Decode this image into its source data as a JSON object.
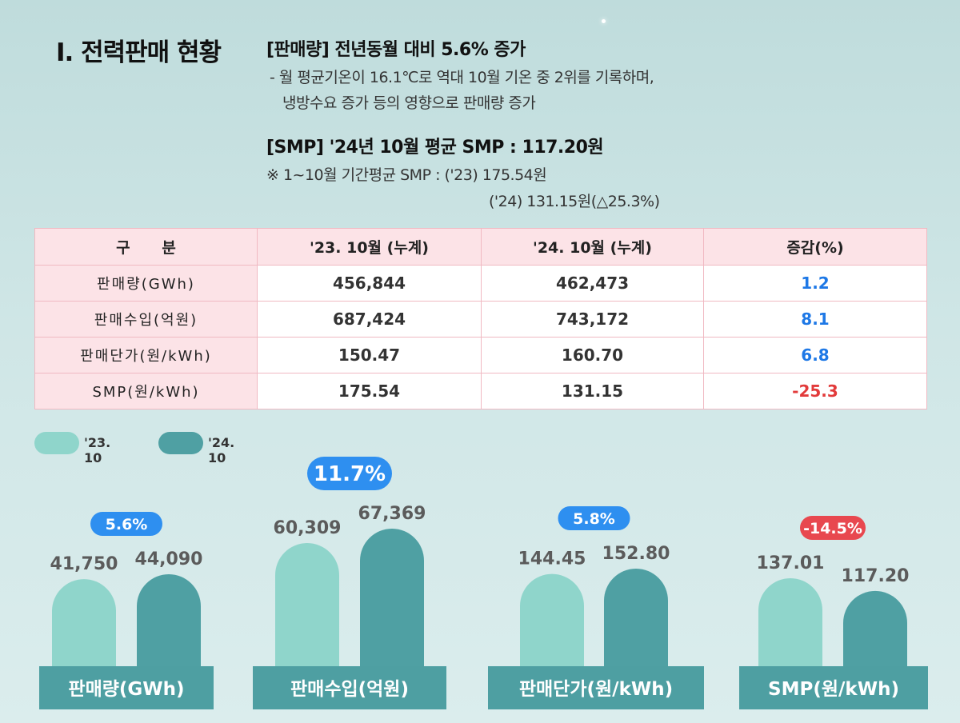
{
  "section_title": "I. 전력판매 현황",
  "summary": {
    "sales_head": "[판매량] 전년동월 대비 5.6% 증가",
    "sales_detail_1": "- 월 평균기온이 16.1℃로 역대 10월 기온 중 2위를 기록하며,",
    "sales_detail_2": "냉방수요 증가 등의 영향으로 판매량 증가",
    "smp_head": "[SMP] '24년 10월 평균 SMP : 117.20원",
    "smp_note_1": "※ 1~10월 기간평균 SMP : ('23) 175.54원",
    "smp_note_2": "('24) 131.15원(△25.3%)"
  },
  "table": {
    "headers": [
      "구      분",
      "'23. 10월 (누계)",
      "'24. 10월 (누계)",
      "증감(%)"
    ],
    "rows": [
      {
        "label": "판매량(GWh)",
        "y23": "456,844",
        "y24": "462,473",
        "change": "1.2",
        "sign": "pos"
      },
      {
        "label": "판매수입(억원)",
        "y23": "687,424",
        "y24": "743,172",
        "change": "8.1",
        "sign": "pos"
      },
      {
        "label": "판매단가(원/kWh)",
        "y23": "150.47",
        "y24": "160.70",
        "change": "6.8",
        "sign": "pos"
      },
      {
        "label": "SMP(원/kWh)",
        "y23": "175.54",
        "y24": "131.15",
        "change": "-25.3",
        "sign": "neg"
      }
    ]
  },
  "legend": [
    "'23. 10",
    "'24. 10"
  ],
  "colors": {
    "y23": "#8fd5cb",
    "y24": "#4fa0a3",
    "label_bg": "#4e9fa2",
    "pos_badge": "#2e8ff0",
    "neg_badge": "#e8484f"
  },
  "chart_data": {
    "type": "bar",
    "series_names": [
      "'23. 10",
      "'24. 10"
    ],
    "groups": [
      {
        "category": "판매량(GWh)",
        "values": [
          41750,
          44090
        ],
        "labels": [
          "41,750",
          "44,090"
        ],
        "change": "5.6%",
        "direction": "up"
      },
      {
        "category": "판매수입(억원)",
        "values": [
          60309,
          67369
        ],
        "labels": [
          "60,309",
          "67,369"
        ],
        "change": "11.7%",
        "direction": "up"
      },
      {
        "category": "판매단가(원/kWh)",
        "values": [
          144.45,
          152.8
        ],
        "labels": [
          "144.45",
          "152.80"
        ],
        "change": "5.8%",
        "direction": "up"
      },
      {
        "category": "SMP(원/kWh)",
        "values": [
          137.01,
          117.2
        ],
        "labels": [
          "137.01",
          "117.20"
        ],
        "change": "-14.5%",
        "direction": "down"
      }
    ]
  }
}
